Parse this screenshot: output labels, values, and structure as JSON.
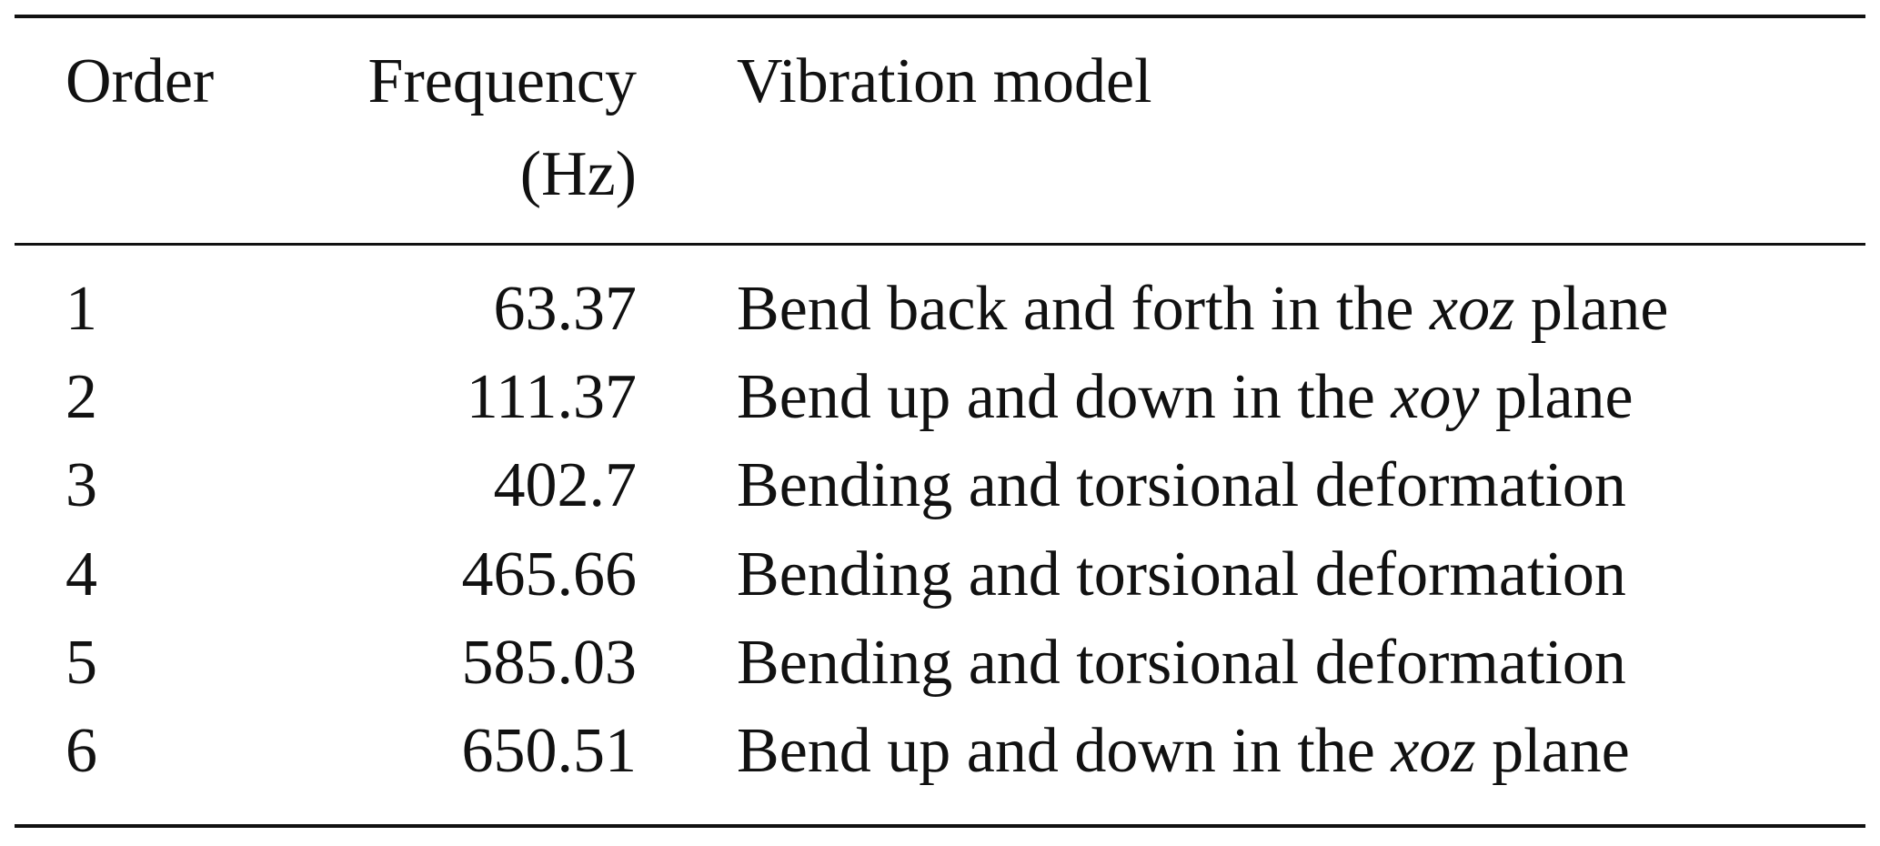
{
  "table": {
    "headers": {
      "order": "Order",
      "frequency_line1": "Frequency",
      "frequency_line2": "(Hz)",
      "vibration_model": "Vibration model"
    },
    "rows": [
      {
        "order": "1",
        "frequency": "63.37",
        "desc_pre": "Bend back and forth in the ",
        "desc_var": "xoz",
        "desc_post": " plane"
      },
      {
        "order": "2",
        "frequency": "111.37",
        "desc_pre": "Bend up and down in the ",
        "desc_var": "xoy",
        "desc_post": " plane"
      },
      {
        "order": "3",
        "frequency": "402.7",
        "desc_pre": "Bending and torsional deformation",
        "desc_var": "",
        "desc_post": ""
      },
      {
        "order": "4",
        "frequency": "465.66",
        "desc_pre": "Bending and torsional deformation",
        "desc_var": "",
        "desc_post": ""
      },
      {
        "order": "5",
        "frequency": "585.03",
        "desc_pre": "Bending and torsional deformation",
        "desc_var": "",
        "desc_post": ""
      },
      {
        "order": "6",
        "frequency": "650.51",
        "desc_pre": "Bend up and down in the ",
        "desc_var": "xoz",
        "desc_post": " plane"
      }
    ]
  }
}
